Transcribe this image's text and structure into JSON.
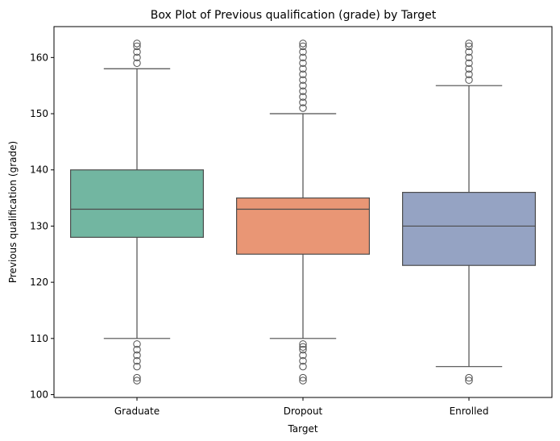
{
  "chart_data": {
    "type": "box",
    "title": "Box Plot of Previous qualification (grade) by Target",
    "xlabel": "Target",
    "ylabel": "Previous qualification (grade)",
    "categories": [
      "Graduate",
      "Dropout",
      "Enrolled"
    ],
    "ylim": [
      99.5,
      165.5
    ],
    "yticks": [
      100,
      110,
      120,
      130,
      140,
      150,
      160
    ],
    "grid": false,
    "boxes": [
      {
        "name": "Graduate",
        "color": "#72b6a1",
        "whisker_low": 110,
        "q1": 128,
        "median": 133,
        "q3": 140,
        "whisker_high": 158,
        "outliers": [
          102.5,
          103,
          105,
          106,
          107,
          108,
          109,
          159,
          160,
          161,
          162,
          162.5
        ]
      },
      {
        "name": "Dropout",
        "color": "#e99675",
        "whisker_low": 110,
        "q1": 125,
        "median": 133,
        "q3": 135,
        "whisker_high": 150,
        "outliers": [
          102.5,
          103,
          105,
          106,
          107,
          108,
          108.5,
          109,
          151,
          152,
          153,
          154,
          155,
          156,
          157,
          158,
          159,
          160,
          161,
          162,
          162.5
        ]
      },
      {
        "name": "Enrolled",
        "color": "#95a3c3",
        "whisker_low": 105,
        "q1": 123,
        "median": 130,
        "q3": 136,
        "whisker_high": 155,
        "outliers": [
          102.5,
          103,
          156,
          157,
          158,
          159,
          160,
          161,
          162,
          162.5
        ]
      }
    ]
  }
}
